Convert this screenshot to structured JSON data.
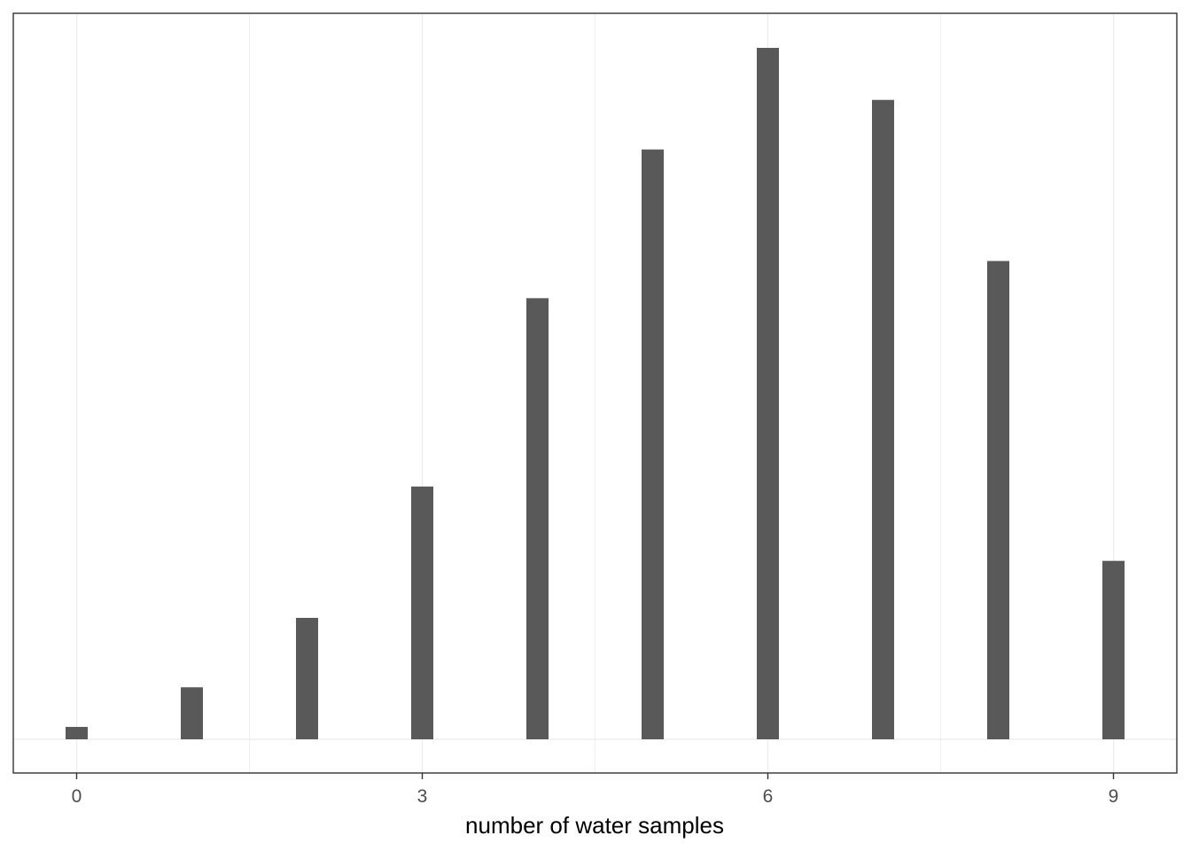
{
  "chart_data": {
    "type": "bar",
    "title": "",
    "xlabel": "number of water samples",
    "ylabel": "",
    "x": [
      0,
      1,
      2,
      3,
      4,
      5,
      6,
      7,
      8,
      9
    ],
    "values": [
      0.0005,
      0.0021,
      0.0049,
      0.0102,
      0.0178,
      0.0238,
      0.0279,
      0.0258,
      0.0193,
      0.0072
    ],
    "x_ticks": [
      0,
      3,
      6,
      9
    ],
    "xlim": [
      -0.55,
      9.55
    ],
    "ylim": [
      0,
      0.0293
    ],
    "y_ticks_shown": false,
    "grid": "vertical",
    "legend": "none",
    "bar_color": "#595959",
    "grid_color": "#ebebeb",
    "panel_border_color": "#333333",
    "background": "#ffffff"
  }
}
